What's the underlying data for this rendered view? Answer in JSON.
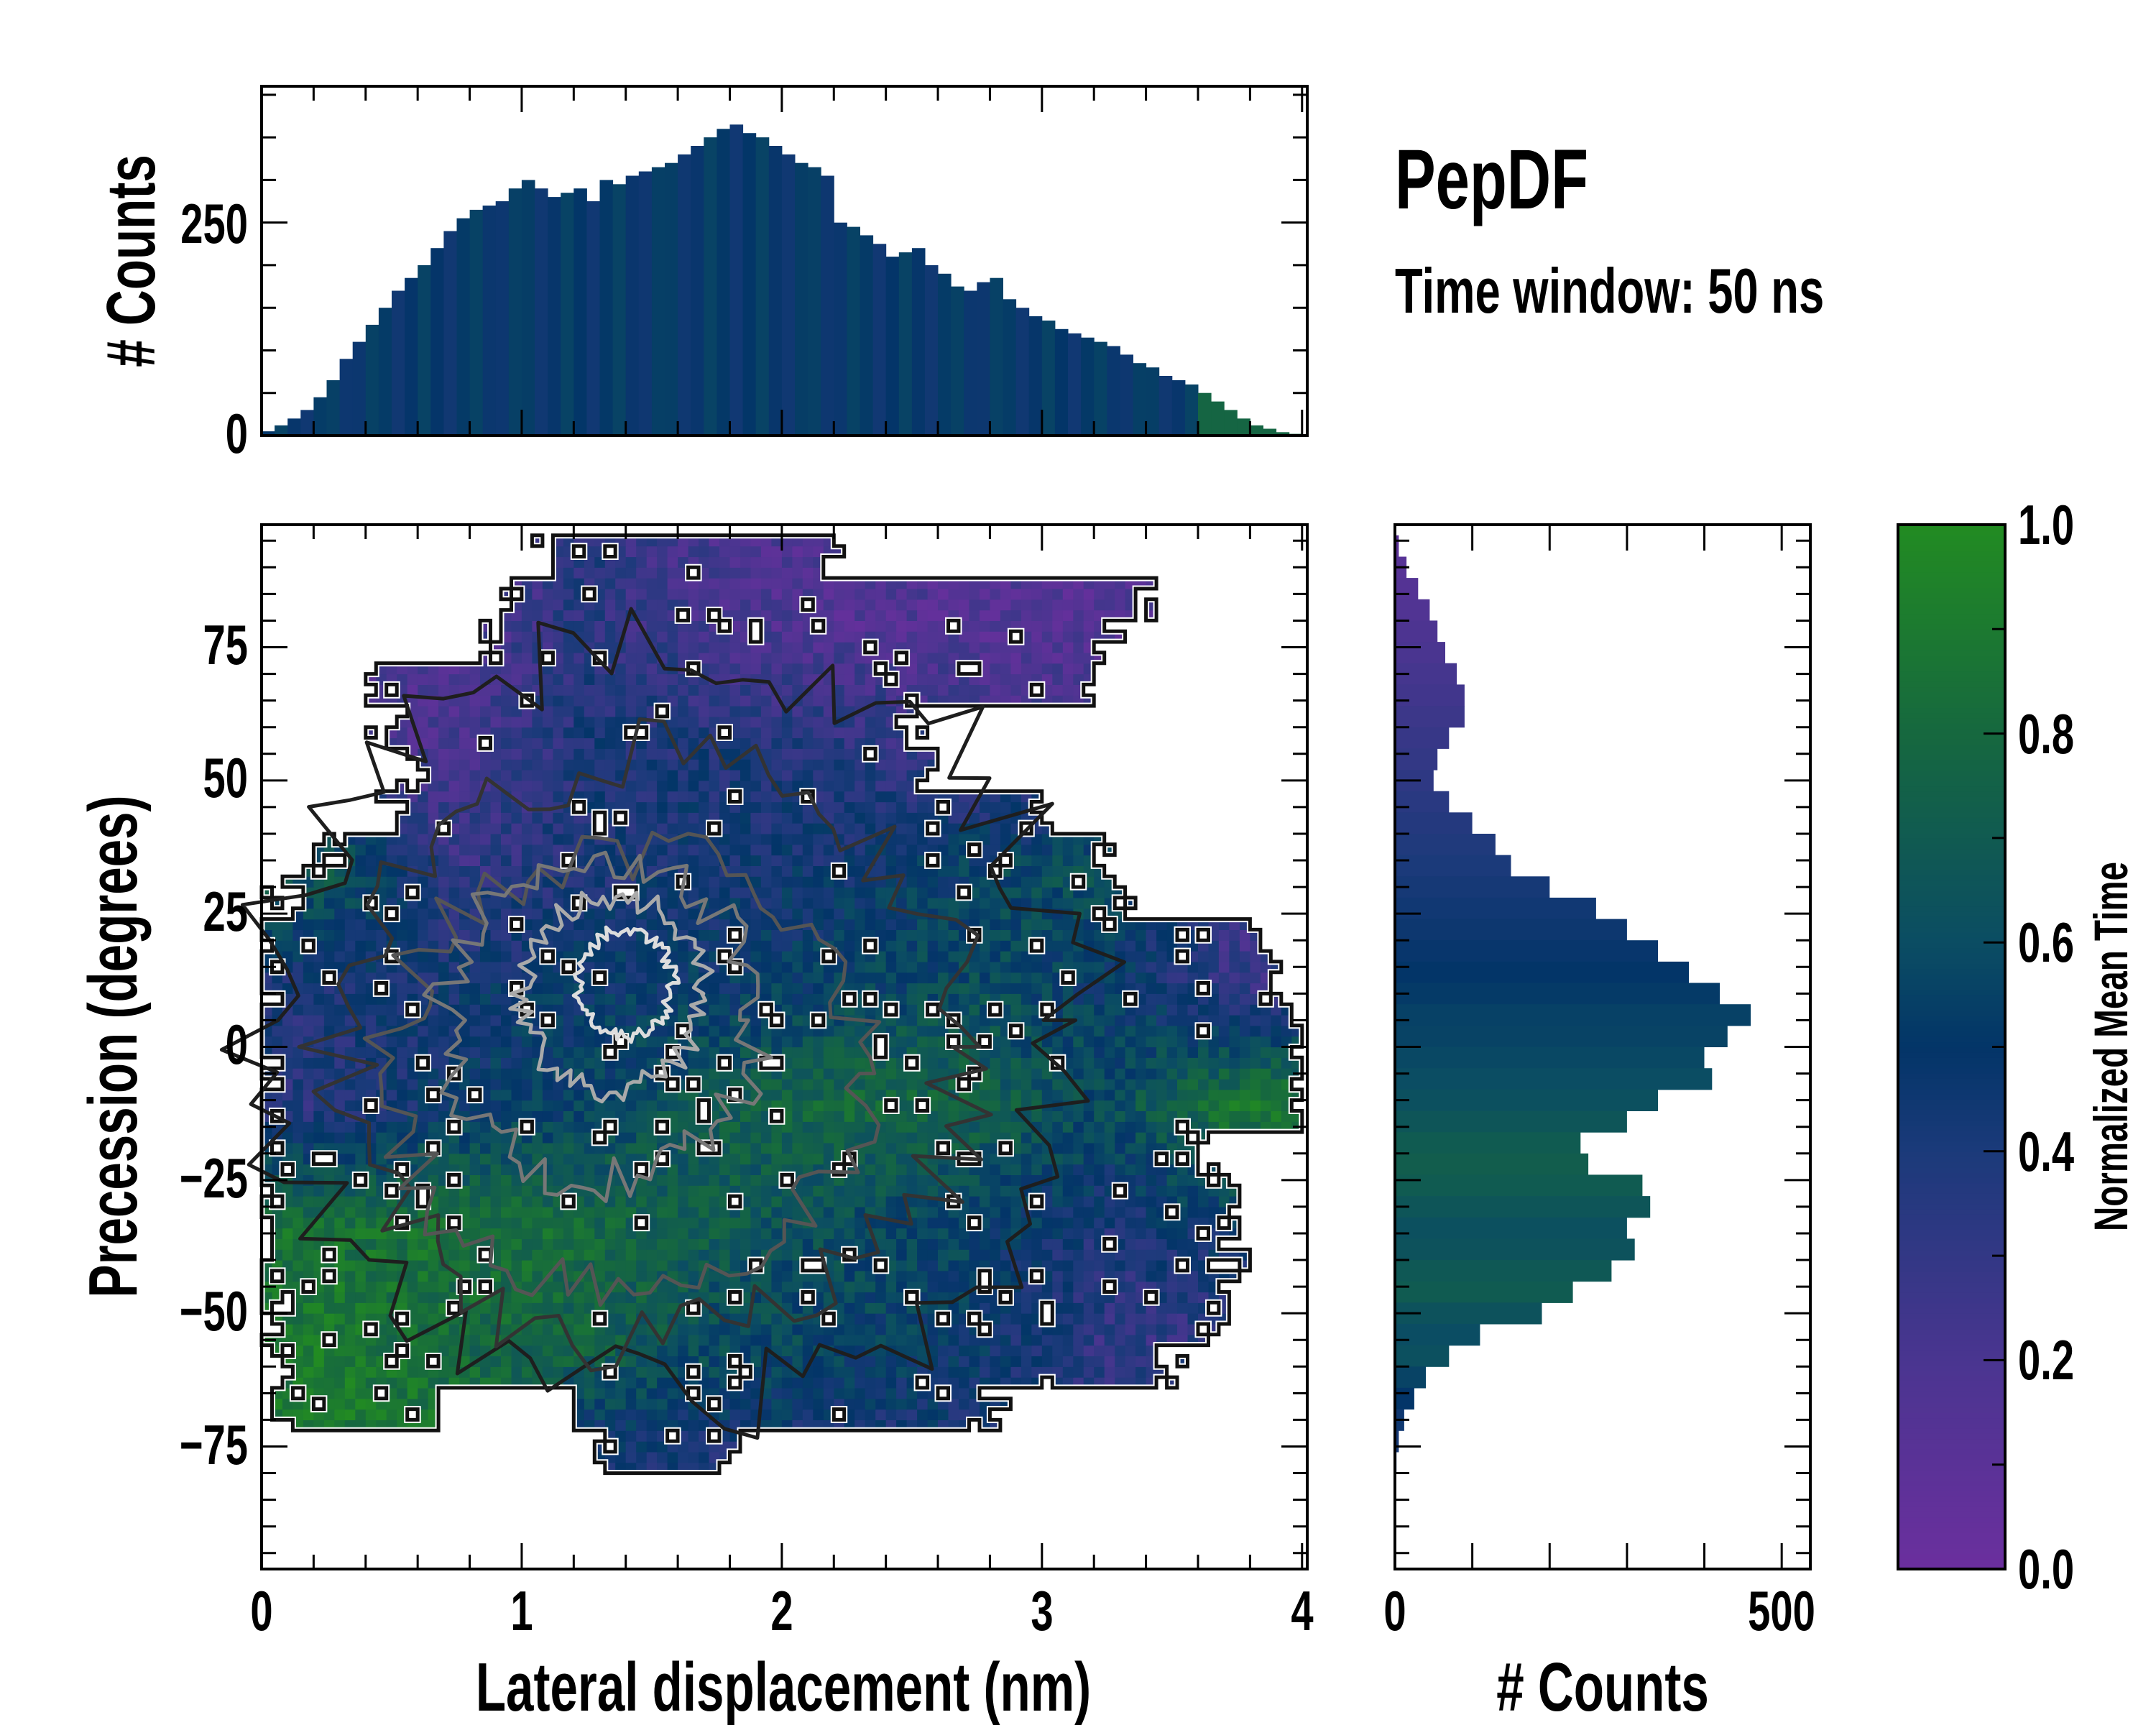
{
  "chart_data": [
    {
      "name": "main-heatmap",
      "type": "heatmap",
      "xlabel": "Lateral displacement (nm)",
      "ylabel": "Precession (degrees)",
      "xlim": [
        0,
        4.02
      ],
      "ylim": [
        -98,
        98
      ],
      "x_ticks": [
        "0",
        "1",
        "2",
        "3",
        "4"
      ],
      "y_ticks": [
        "75",
        "50",
        "25",
        "0",
        "−25",
        "−50",
        "−75"
      ],
      "x_tick_values": [
        0,
        1,
        2,
        3,
        4
      ],
      "y_tick_values": [
        75,
        50,
        25,
        0,
        -25,
        -50,
        -75
      ],
      "color_quantity": "Normalized Mean Time",
      "coarse_grid_x_edges": [
        0,
        0.5,
        1,
        1.5,
        2,
        2.5,
        3,
        3.5,
        4
      ],
      "coarse_grid_y_edges_top_down": [
        90,
        67.5,
        45,
        22.5,
        0,
        -22.5,
        -45,
        -67.5,
        -90
      ],
      "coarse_mean_time": [
        [
          0.15,
          0.15,
          0.35,
          0.2,
          0.15,
          0.15,
          0.15,
          0.2
        ],
        [
          0.2,
          0.2,
          0.4,
          0.4,
          0.35,
          0.25,
          0.2,
          0.2
        ],
        [
          0.7,
          0.3,
          0.4,
          0.45,
          0.45,
          0.55,
          0.65,
          0.2
        ],
        [
          0.4,
          0.45,
          0.5,
          0.5,
          0.55,
          0.6,
          0.5,
          0.3
        ],
        [
          0.35,
          0.5,
          0.55,
          0.7,
          0.8,
          0.75,
          0.6,
          0.9
        ],
        [
          0.85,
          0.85,
          0.8,
          0.7,
          0.6,
          0.55,
          0.4,
          0.5
        ],
        [
          0.9,
          0.8,
          0.75,
          0.6,
          0.55,
          0.5,
          0.3,
          0.3
        ],
        [
          0.9,
          0.9,
          0.4,
          0.4,
          0.4,
          0.4,
          0.4,
          0.4
        ]
      ],
      "support_rows": [
        [
          92,
          1.1,
          2.2
        ],
        [
          84,
          0.95,
          3.4
        ],
        [
          76,
          0.9,
          3.3
        ],
        [
          68,
          0.45,
          3.2
        ],
        [
          60,
          0.5,
          2.5
        ],
        [
          52,
          0.6,
          2.6
        ],
        [
          44,
          0.5,
          3.0
        ],
        [
          36,
          0.25,
          3.2
        ],
        [
          28,
          0.1,
          3.3
        ],
        [
          20,
          0.0,
          3.85
        ],
        [
          12,
          0.0,
          3.9
        ],
        [
          4,
          0.0,
          4.0
        ],
        [
          -4,
          0.0,
          4.0
        ],
        [
          -12,
          0.0,
          4.0
        ],
        [
          -20,
          0.0,
          3.6
        ],
        [
          -28,
          0.0,
          3.7
        ],
        [
          -36,
          0.0,
          3.75
        ],
        [
          -44,
          0.0,
          3.7
        ],
        [
          -52,
          0.0,
          3.65
        ],
        [
          -60,
          0.1,
          3.5
        ],
        [
          -68,
          0.1,
          2.8
        ],
        [
          -76,
          1.3,
          1.8
        ]
      ]
    },
    {
      "name": "top-histogram",
      "type": "bar",
      "ylabel": "# Counts",
      "xlim": [
        0,
        4.02
      ],
      "ylim": [
        0,
        410
      ],
      "y_ticks": [
        "0",
        "250"
      ],
      "y_tick_values": [
        0,
        250
      ],
      "bin_width": 0.05,
      "x_start": 0,
      "values": [
        5,
        12,
        20,
        30,
        45,
        65,
        90,
        110,
        130,
        150,
        170,
        185,
        200,
        220,
        240,
        255,
        265,
        270,
        275,
        290,
        300,
        290,
        280,
        285,
        290,
        275,
        300,
        295,
        305,
        310,
        315,
        320,
        330,
        340,
        350,
        360,
        365,
        355,
        350,
        340,
        330,
        320,
        315,
        305,
        250,
        245,
        235,
        225,
        210,
        215,
        220,
        200,
        190,
        175,
        170,
        180,
        185,
        160,
        150,
        140,
        135,
        125,
        120,
        115,
        110,
        105,
        95,
        85,
        80,
        70,
        65,
        60,
        50,
        40,
        30,
        20,
        12,
        8,
        4,
        2
      ]
    },
    {
      "name": "right-histogram",
      "type": "bar",
      "orientation": "horizontal",
      "xlabel": "# Counts",
      "xlim": [
        0,
        537
      ],
      "ylim": [
        -98,
        98
      ],
      "x_ticks": [
        "0",
        "500"
      ],
      "x_tick_values": [
        0,
        500
      ],
      "bin_width": 4,
      "y_centers": [
        94,
        90,
        86,
        82,
        78,
        74,
        70,
        66,
        62,
        58,
        54,
        50,
        46,
        42,
        38,
        34,
        30,
        26,
        22,
        18,
        14,
        10,
        6,
        2,
        -2,
        -6,
        -10,
        -14,
        -18,
        -22,
        -26,
        -30,
        -34,
        -38,
        -42,
        -46,
        -50,
        -54,
        -58,
        -62,
        -66,
        -70,
        -74,
        -78
      ],
      "values": [
        5,
        15,
        30,
        45,
        55,
        65,
        80,
        90,
        90,
        70,
        55,
        50,
        70,
        100,
        130,
        150,
        200,
        260,
        300,
        340,
        380,
        420,
        460,
        430,
        400,
        410,
        340,
        300,
        240,
        250,
        320,
        330,
        300,
        310,
        280,
        230,
        190,
        110,
        70,
        40,
        25,
        12,
        5,
        2
      ],
      "mean_time": [
        0.1,
        0.12,
        0.14,
        0.16,
        0.18,
        0.2,
        0.22,
        0.24,
        0.26,
        0.28,
        0.3,
        0.32,
        0.34,
        0.36,
        0.38,
        0.4,
        0.42,
        0.44,
        0.46,
        0.48,
        0.5,
        0.52,
        0.55,
        0.56,
        0.58,
        0.6,
        0.62,
        0.66,
        0.7,
        0.72,
        0.7,
        0.66,
        0.62,
        0.64,
        0.68,
        0.7,
        0.64,
        0.6,
        0.62,
        0.56,
        0.5,
        0.45,
        0.42,
        0.4
      ]
    },
    {
      "name": "colorbar",
      "type": "colorbar",
      "label": "Normalized Mean Time",
      "range": [
        0,
        1
      ],
      "ticks": [
        "0.0",
        "0.2",
        "0.4",
        "0.6",
        "0.8",
        "1.0"
      ],
      "tick_values": [
        0,
        0.2,
        0.4,
        0.6,
        0.8,
        1.0
      ],
      "colormap_stops": [
        [
          0,
          "#6b2f9e"
        ],
        [
          0.2,
          "#4a3590"
        ],
        [
          0.4,
          "#1b3a7a"
        ],
        [
          0.5,
          "#033568"
        ],
        [
          0.6,
          "#0b4d63"
        ],
        [
          0.8,
          "#16683f"
        ],
        [
          1.0,
          "#228b22"
        ]
      ]
    }
  ],
  "annotations": {
    "title": "PepDF",
    "subtitle": "Time window: 50 ns"
  }
}
